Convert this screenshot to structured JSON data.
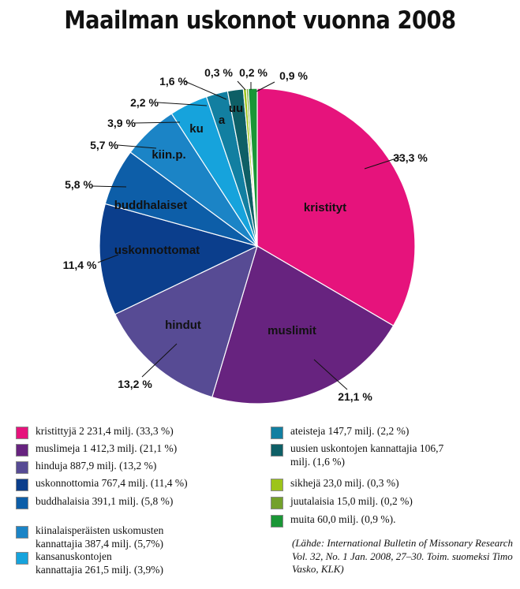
{
  "chart_data": {
    "type": "pie",
    "title": "Maailman uskonnot vuonna 2008",
    "slices": [
      {
        "key": "kristityt",
        "label": "kristityt",
        "percent_label": "33,3 %",
        "value": 33.3,
        "color": "#e6137c"
      },
      {
        "key": "muslimit",
        "label": "muslimit",
        "percent_label": "21,1 %",
        "value": 21.1,
        "color": "#67237f"
      },
      {
        "key": "hindut",
        "label": "hindut",
        "percent_label": "13,2 %",
        "value": 13.2,
        "color": "#574b94"
      },
      {
        "key": "uskonnottomat",
        "label": "uskonnottomat",
        "percent_label": "11,4 %",
        "value": 11.4,
        "color": "#0b3e8c"
      },
      {
        "key": "buddhalaiset",
        "label": "buddhalaiset",
        "percent_label": "5,8 %",
        "value": 5.8,
        "color": "#0d5ea8"
      },
      {
        "key": "kiinp",
        "label": "kiin.p.",
        "percent_label": "5,7 %",
        "value": 5.7,
        "color": "#1b84c6"
      },
      {
        "key": "ku",
        "label": "ku",
        "percent_label": "3,9 %",
        "value": 3.9,
        "color": "#16a3dc"
      },
      {
        "key": "a",
        "label": "a",
        "percent_label": "2,2 %",
        "value": 2.2,
        "color": "#127fa1"
      },
      {
        "key": "uu",
        "label": "uu",
        "percent_label": "1,6 %",
        "value": 1.6,
        "color": "#0e5f66"
      },
      {
        "key": "sikhit",
        "label": "",
        "percent_label": "0,3 %",
        "value": 0.3,
        "color": "#9dc41a"
      },
      {
        "key": "juutalaiset",
        "label": "",
        "percent_label": "0,2 %",
        "value": 0.2,
        "color": "#73a12b"
      },
      {
        "key": "muut",
        "label": "",
        "percent_label": "0,9 %",
        "value": 0.9,
        "color": "#1a9636"
      }
    ],
    "legend": [
      {
        "text": "kristittyjä 2 231,4 milj. (33,3 %)",
        "color": "#e6137c"
      },
      {
        "text": "muslimeja 1 412,3 milj. (21,1 %)",
        "color": "#67237f"
      },
      {
        "text": "hinduja 887,9 milj. (13,2 %)",
        "color": "#574b94"
      },
      {
        "text": "uskonnottomia 767,4 milj. (11,4 %)",
        "color": "#0b3e8c"
      },
      {
        "text": "buddhalaisia 391,1 milj. (5,8 %)",
        "color": "#0d5ea8"
      },
      {
        "text": "kiinalaisperäisten uskomusten\nkannattajia 387,4 milj. (5,7%)",
        "color": "#1b84c6"
      },
      {
        "text": "kansanuskontojen\nkannattajia 261,5 milj. (3,9%)",
        "color": "#16a3dc"
      },
      {
        "text": "ateisteja 147,7 milj. (2,2 %)",
        "color": "#127fa1"
      },
      {
        "text": "uusien uskontojen kannattajia 106,7\nmilj. (1,6 %)",
        "color": "#0e5f66"
      },
      {
        "text": "sikhejä 23,0 milj. (0,3 %)",
        "color": "#9dc41a"
      },
      {
        "text": "juutalaisia 15,0 milj. (0,2 %)",
        "color": "#73a12b"
      },
      {
        "text": "muita 60,0 milj. (0,9 %).",
        "color": "#1a9636"
      }
    ],
    "source": "(Lähde: International Bulletin of Missonary Research Vol. 32, No. 1 Jan. 2008, 27–30. Toim. suomeksi Timo Vasko, KLK)"
  }
}
